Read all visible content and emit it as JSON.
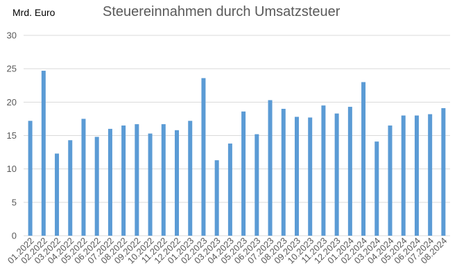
{
  "chart_data": {
    "type": "bar",
    "title": "Steuereinnahmen durch Umsatzsteuer",
    "ylabel": "Mrd. Euro",
    "xlabel": "",
    "ylim": [
      0,
      30
    ],
    "yticks": [
      0,
      5,
      10,
      15,
      20,
      25,
      30
    ],
    "grid": true,
    "bar_color": "#5b9bd5",
    "categories": [
      "01.2022",
      "02.2022",
      "03.2022",
      "04.2022",
      "05.2022",
      "06.2022",
      "07.2022",
      "08.2022",
      "09.2022",
      "10.2022",
      "11.2022",
      "12.2022",
      "01.2023",
      "02.2023",
      "03.2023",
      "04.2023",
      "05.2023",
      "06.2023",
      "07.2023",
      "08.2023",
      "09.2023",
      "10.2023",
      "11.2023",
      "12.2023",
      "01.2024",
      "02.2024",
      "03.2024",
      "04.2024",
      "05.2024",
      "06.2024",
      "07.2024",
      "08.2024"
    ],
    "values": [
      17.2,
      24.7,
      12.3,
      14.3,
      17.5,
      14.8,
      16.0,
      16.5,
      16.7,
      15.3,
      16.7,
      15.8,
      17.2,
      23.6,
      11.3,
      13.8,
      18.6,
      15.2,
      20.3,
      19.0,
      17.8,
      17.7,
      19.5,
      18.3,
      19.3,
      23.0,
      14.1,
      16.5,
      18.0,
      18.0,
      18.2,
      19.1
    ]
  }
}
